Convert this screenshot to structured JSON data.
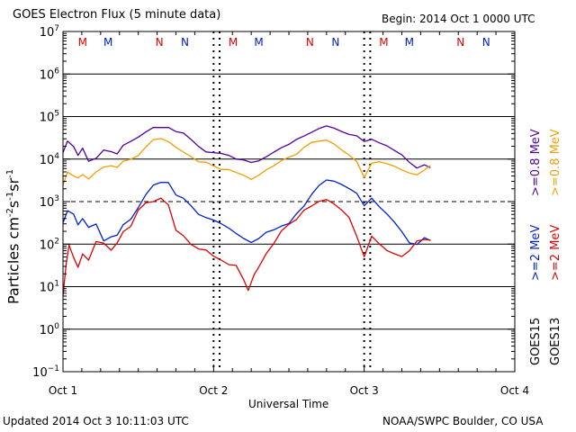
{
  "header": {
    "title": "GOES Electron Flux (5 minute data)",
    "begin": "Begin: 2014 Oct 1 0000 UTC"
  },
  "footer": {
    "updated": "Updated 2014 Oct  3 10:11:03 UTC",
    "credit": "NOAA/SWPC Boulder, CO USA"
  },
  "colors": {
    "goes15_2mev": "#5000a0",
    "goes15_08mev": "#f0a000",
    "goes13_2mev": "#0020d0",
    "goes13_08mev": "#e00000",
    "marker_m": "#e00000",
    "marker_m2": "#0020d0"
  },
  "chart_data": {
    "type": "line",
    "title": "GOES Electron Flux (5 minute data)",
    "xlabel": "Universal Time",
    "ylabel": "Particles cm-2s-1sr-1",
    "ylabel_parts": {
      "base": "Particles cm",
      "e1": "-2",
      "mid1": "s",
      "e2": "-1",
      "mid2": "sr",
      "e3": "-1"
    },
    "x_scale": "days since 2014 Oct 1 0000 UTC",
    "xlim": [
      0,
      3
    ],
    "x_ticks": [
      {
        "x": 0,
        "label": "Oct 1"
      },
      {
        "x": 1,
        "label": "Oct 2"
      },
      {
        "x": 2,
        "label": "Oct 3"
      },
      {
        "x": 3,
        "label": "Oct 4"
      }
    ],
    "y_scale": "log",
    "ylim": [
      0.1,
      10000000
    ],
    "y_ticks": [
      {
        "exp": "-1"
      },
      {
        "exp": "0"
      },
      {
        "exp": "1"
      },
      {
        "exp": "2"
      },
      {
        "exp": "3"
      },
      {
        "exp": "4"
      },
      {
        "exp": "5"
      },
      {
        "exp": "6"
      },
      {
        "exp": "7"
      }
    ],
    "gridlines_y": [
      1,
      10,
      100,
      10000,
      100000,
      1000000
    ],
    "dashed_gridline_y": 1000,
    "markers": [
      {
        "x": 0.13,
        "label": "M",
        "color": "#e00000"
      },
      {
        "x": 0.3,
        "label": "M",
        "color": "#0020d0"
      },
      {
        "x": 0.64,
        "label": "N",
        "color": "#e00000"
      },
      {
        "x": 0.81,
        "label": "N",
        "color": "#0020d0"
      },
      {
        "x": 1.13,
        "label": "M",
        "color": "#e00000"
      },
      {
        "x": 1.3,
        "label": "M",
        "color": "#0020d0"
      },
      {
        "x": 1.64,
        "label": "N",
        "color": "#e00000"
      },
      {
        "x": 1.81,
        "label": "N",
        "color": "#0020d0"
      },
      {
        "x": 2.13,
        "label": "M",
        "color": "#e00000"
      },
      {
        "x": 2.3,
        "label": "M",
        "color": "#0020d0"
      },
      {
        "x": 2.64,
        "label": "N",
        "color": "#e00000"
      },
      {
        "x": 2.81,
        "label": "N",
        "color": "#0020d0"
      }
    ],
    "dotted_verticals": [
      1.0,
      1.04,
      2.0,
      2.04
    ],
    "legend": [
      {
        "name": ">=0.8 MeV",
        "group": "GOES13",
        "color": "#f0a000"
      },
      {
        "name": ">=0.8 MeV",
        "group": "GOES15",
        "color": "#5000a0"
      },
      {
        "name": ">=2 MeV",
        "group": "GOES13",
        "color": "#e00000"
      },
      {
        "name": ">=2 MeV",
        "group": "GOES15",
        "color": "#0020d0"
      }
    ],
    "legend_labels": {
      "goes13": "GOES13",
      "goes15": "GOES15",
      "purple": ">=0.8 MeV",
      "orange": ">=0.8 MeV",
      "blue": ">=2 MeV",
      "red": ">=2 MeV"
    },
    "series": [
      {
        "color": "#5000a0",
        "points": [
          [
            0.0,
            15000
          ],
          [
            0.03,
            25000
          ],
          [
            0.07,
            20000
          ],
          [
            0.1,
            12000
          ],
          [
            0.13,
            18000
          ],
          [
            0.17,
            9000
          ],
          [
            0.22,
            10000
          ],
          [
            0.27,
            16000
          ],
          [
            0.32,
            15000
          ],
          [
            0.36,
            14000
          ],
          [
            0.4,
            22000
          ],
          [
            0.45,
            25000
          ],
          [
            0.5,
            35000
          ],
          [
            0.55,
            45000
          ],
          [
            0.6,
            55000
          ],
          [
            0.65,
            58000
          ],
          [
            0.7,
            55000
          ],
          [
            0.75,
            45000
          ],
          [
            0.8,
            40000
          ],
          [
            0.85,
            30000
          ],
          [
            0.9,
            20000
          ],
          [
            0.95,
            15000
          ],
          [
            1.0,
            14000
          ],
          [
            1.05,
            13000
          ],
          [
            1.1,
            12000
          ],
          [
            1.15,
            10000
          ],
          [
            1.2,
            9000
          ],
          [
            1.25,
            8000
          ],
          [
            1.3,
            9000
          ],
          [
            1.35,
            12000
          ],
          [
            1.4,
            15000
          ],
          [
            1.45,
            18000
          ],
          [
            1.5,
            22000
          ],
          [
            1.55,
            28000
          ],
          [
            1.6,
            35000
          ],
          [
            1.65,
            45000
          ],
          [
            1.7,
            55000
          ],
          [
            1.75,
            60000
          ],
          [
            1.8,
            55000
          ],
          [
            1.85,
            45000
          ],
          [
            1.9,
            40000
          ],
          [
            1.95,
            35000
          ],
          [
            2.0,
            25000
          ],
          [
            2.05,
            30000
          ],
          [
            2.1,
            25000
          ],
          [
            2.15,
            20000
          ],
          [
            2.2,
            16000
          ],
          [
            2.25,
            12000
          ],
          [
            2.3,
            8000
          ],
          [
            2.35,
            6000
          ],
          [
            2.4,
            7000
          ],
          [
            2.44,
            6500
          ]
        ]
      },
      {
        "color": "#f0a000",
        "points": [
          [
            0.0,
            2500
          ],
          [
            0.03,
            5000
          ],
          [
            0.07,
            4000
          ],
          [
            0.1,
            3500
          ],
          [
            0.13,
            4500
          ],
          [
            0.17,
            3500
          ],
          [
            0.22,
            5000
          ],
          [
            0.27,
            6500
          ],
          [
            0.32,
            7000
          ],
          [
            0.36,
            6000
          ],
          [
            0.4,
            9000
          ],
          [
            0.45,
            10000
          ],
          [
            0.5,
            12000
          ],
          [
            0.55,
            20000
          ],
          [
            0.6,
            28000
          ],
          [
            0.65,
            30000
          ],
          [
            0.7,
            25000
          ],
          [
            0.75,
            20000
          ],
          [
            0.8,
            15000
          ],
          [
            0.85,
            12000
          ],
          [
            0.9,
            9000
          ],
          [
            0.95,
            8000
          ],
          [
            1.0,
            7000
          ],
          [
            1.05,
            6000
          ],
          [
            1.1,
            5500
          ],
          [
            1.15,
            5000
          ],
          [
            1.2,
            4000
          ],
          [
            1.25,
            3500
          ],
          [
            1.3,
            4000
          ],
          [
            1.35,
            5500
          ],
          [
            1.4,
            7000
          ],
          [
            1.45,
            9000
          ],
          [
            1.5,
            11000
          ],
          [
            1.55,
            13000
          ],
          [
            1.6,
            18000
          ],
          [
            1.65,
            25000
          ],
          [
            1.7,
            28000
          ],
          [
            1.75,
            27000
          ],
          [
            1.8,
            22000
          ],
          [
            1.85,
            17000
          ],
          [
            1.9,
            13000
          ],
          [
            1.95,
            9000
          ],
          [
            2.0,
            3500
          ],
          [
            2.05,
            8000
          ],
          [
            2.1,
            9000
          ],
          [
            2.15,
            8000
          ],
          [
            2.2,
            6500
          ],
          [
            2.25,
            5500
          ],
          [
            2.3,
            5000
          ],
          [
            2.35,
            4500
          ],
          [
            2.4,
            5500
          ],
          [
            2.44,
            7000
          ]
        ]
      },
      {
        "color": "#0020d0",
        "points": [
          [
            0.0,
            300
          ],
          [
            0.03,
            600
          ],
          [
            0.07,
            500
          ],
          [
            0.1,
            300
          ],
          [
            0.13,
            400
          ],
          [
            0.17,
            250
          ],
          [
            0.22,
            300
          ],
          [
            0.27,
            120
          ],
          [
            0.32,
            150
          ],
          [
            0.36,
            160
          ],
          [
            0.4,
            300
          ],
          [
            0.45,
            400
          ],
          [
            0.5,
            700
          ],
          [
            0.55,
            1500
          ],
          [
            0.6,
            2500
          ],
          [
            0.65,
            3000
          ],
          [
            0.7,
            2800
          ],
          [
            0.75,
            1500
          ],
          [
            0.8,
            1200
          ],
          [
            0.85,
            800
          ],
          [
            0.9,
            500
          ],
          [
            0.95,
            400
          ],
          [
            1.0,
            350
          ],
          [
            1.05,
            300
          ],
          [
            1.1,
            250
          ],
          [
            1.15,
            180
          ],
          [
            1.2,
            130
          ],
          [
            1.25,
            110
          ],
          [
            1.3,
            140
          ],
          [
            1.35,
            180
          ],
          [
            1.4,
            220
          ],
          [
            1.45,
            250
          ],
          [
            1.5,
            300
          ],
          [
            1.55,
            500
          ],
          [
            1.6,
            800
          ],
          [
            1.65,
            1500
          ],
          [
            1.7,
            2500
          ],
          [
            1.75,
            3200
          ],
          [
            1.8,
            3000
          ],
          [
            1.85,
            2500
          ],
          [
            1.9,
            2000
          ],
          [
            1.95,
            1500
          ],
          [
            2.0,
            800
          ],
          [
            2.05,
            1200
          ],
          [
            2.1,
            800
          ],
          [
            2.15,
            500
          ],
          [
            2.2,
            350
          ],
          [
            2.25,
            200
          ],
          [
            2.3,
            110
          ],
          [
            2.35,
            100
          ],
          [
            2.4,
            140
          ],
          [
            2.44,
            120
          ]
        ]
      },
      {
        "color": "#e00000",
        "points": [
          [
            0.0,
            6
          ],
          [
            0.02,
            30
          ],
          [
            0.04,
            100
          ],
          [
            0.07,
            50
          ],
          [
            0.1,
            30
          ],
          [
            0.13,
            60
          ],
          [
            0.17,
            40
          ],
          [
            0.22,
            120
          ],
          [
            0.27,
            100
          ],
          [
            0.32,
            70
          ],
          [
            0.36,
            110
          ],
          [
            0.4,
            200
          ],
          [
            0.45,
            250
          ],
          [
            0.5,
            600
          ],
          [
            0.55,
            900
          ],
          [
            0.6,
            1000
          ],
          [
            0.65,
            1200
          ],
          [
            0.7,
            800
          ],
          [
            0.75,
            200
          ],
          [
            0.8,
            150
          ],
          [
            0.85,
            100
          ],
          [
            0.9,
            80
          ],
          [
            0.95,
            70
          ],
          [
            1.0,
            50
          ],
          [
            1.05,
            40
          ],
          [
            1.1,
            35
          ],
          [
            1.15,
            30
          ],
          [
            1.2,
            15
          ],
          [
            1.23,
            8
          ],
          [
            1.27,
            20
          ],
          [
            1.3,
            30
          ],
          [
            1.35,
            60
          ],
          [
            1.4,
            100
          ],
          [
            1.45,
            200
          ],
          [
            1.5,
            300
          ],
          [
            1.55,
            400
          ],
          [
            1.6,
            600
          ],
          [
            1.65,
            800
          ],
          [
            1.7,
            1000
          ],
          [
            1.75,
            1100
          ],
          [
            1.8,
            900
          ],
          [
            1.85,
            600
          ],
          [
            1.9,
            400
          ],
          [
            1.95,
            150
          ],
          [
            2.0,
            50
          ],
          [
            2.05,
            150
          ],
          [
            2.1,
            100
          ],
          [
            2.15,
            70
          ],
          [
            2.2,
            60
          ],
          [
            2.25,
            50
          ],
          [
            2.3,
            70
          ],
          [
            2.35,
            120
          ],
          [
            2.4,
            130
          ],
          [
            2.44,
            130
          ]
        ]
      }
    ]
  }
}
